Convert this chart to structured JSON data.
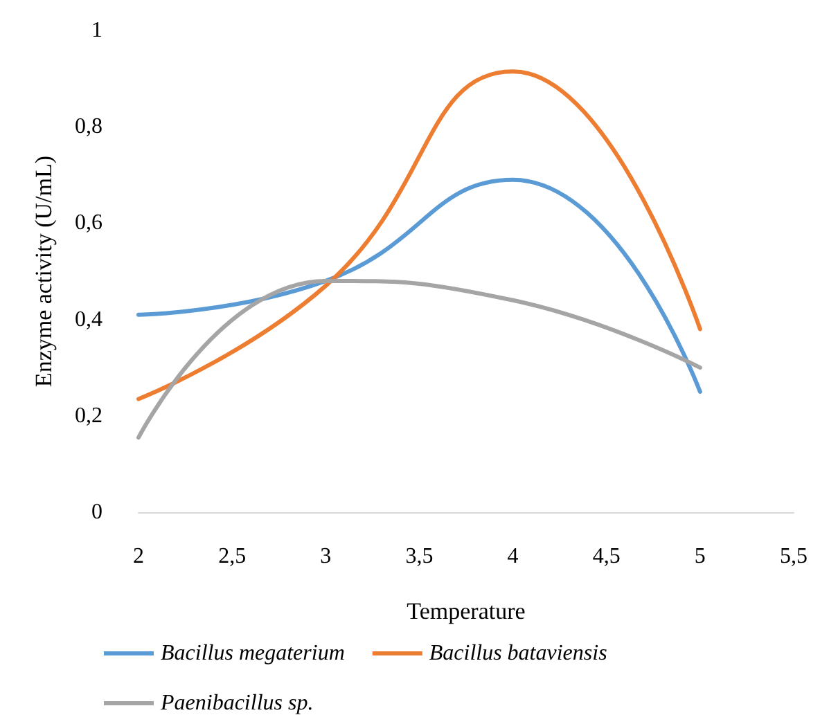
{
  "chart_data": {
    "type": "line",
    "xlabel": "Temperature",
    "ylabel": "Enzyme activity (U/mL)",
    "x": [
      2,
      3,
      4,
      5
    ],
    "series": [
      {
        "name": "Bacillus megaterium",
        "color": "#5b9bd5",
        "values": [
          0.41,
          0.48,
          0.69,
          0.25
        ]
      },
      {
        "name": "Bacillus bataviensis",
        "color": "#ed7d31",
        "values": [
          0.235,
          0.47,
          0.915,
          0.38
        ]
      },
      {
        "name": "Paenibacillus sp.",
        "color": "#a5a5a5",
        "values": [
          0.155,
          0.48,
          0.44,
          0.3
        ]
      }
    ],
    "xlim": [
      2,
      5.5
    ],
    "xticks": [
      2,
      {
        "value": 2.5,
        "label": "2,5"
      },
      3,
      {
        "value": 3.5,
        "label": "3,5"
      },
      4,
      {
        "value": 4.5,
        "label": "4,5"
      },
      5,
      {
        "value": 5.5,
        "label": "5,5"
      }
    ],
    "ylim": [
      0,
      1
    ],
    "yticks": [
      0,
      {
        "value": 0.2,
        "label": "0,2"
      },
      {
        "value": 0.4,
        "label": "0,4"
      },
      {
        "value": 0.6,
        "label": "0,6"
      },
      {
        "value": 0.8,
        "label": "0,8"
      },
      1
    ],
    "grid": false,
    "legend": "bottom",
    "marker": "none",
    "line_style": "solid"
  }
}
